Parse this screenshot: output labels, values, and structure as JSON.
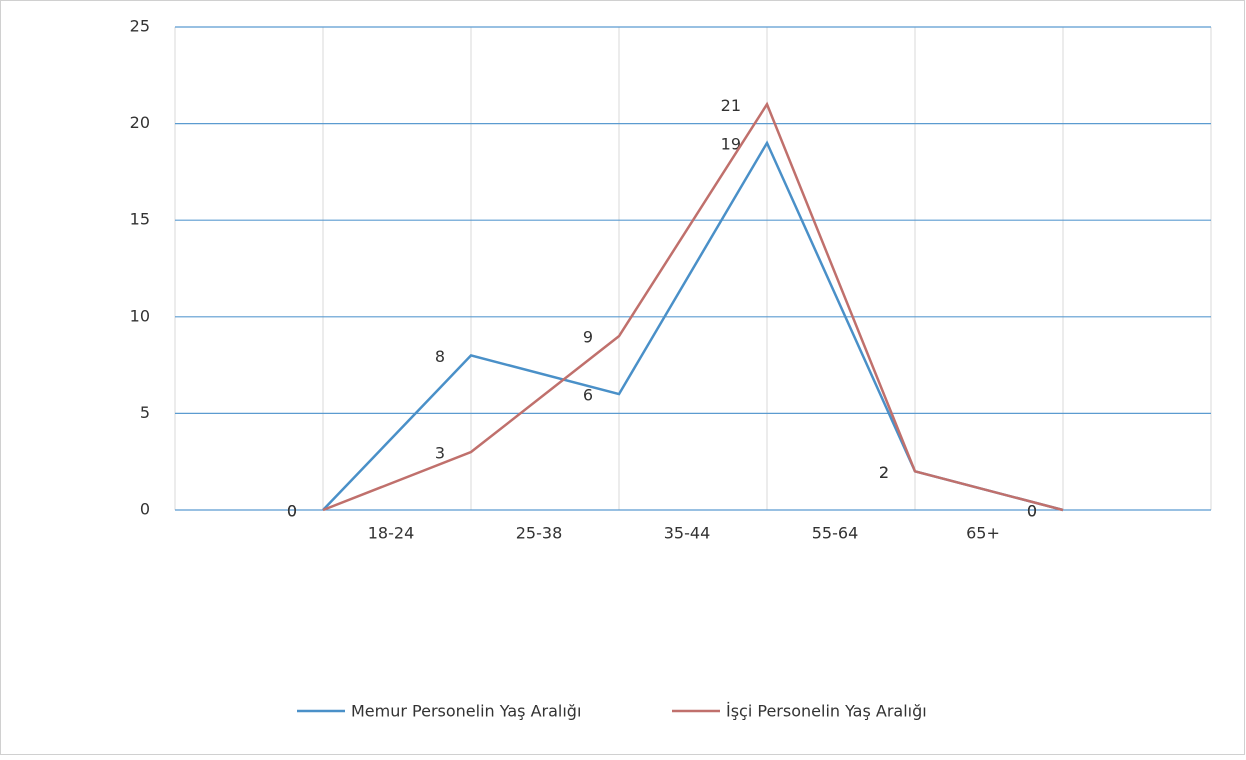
{
  "chart_data": {
    "type": "line",
    "categories": [
      "18-24",
      "25-38",
      "35-44",
      "55-64",
      "65+",
      null
    ],
    "series": [
      {
        "name": "Memur Personelin Yaş Aralığı",
        "color": "#4a90c8",
        "values": [
          0,
          8,
          6,
          19,
          2,
          0
        ]
      },
      {
        "name": "İşçi Personelin Yaş Aralığı",
        "color": "#c0706c",
        "values": [
          0,
          3,
          9,
          21,
          2,
          0
        ]
      }
    ],
    "ylim": [
      0,
      25
    ],
    "yticks": [
      0,
      5,
      10,
      15,
      20,
      25
    ],
    "grid": true,
    "legend": "bottom"
  }
}
